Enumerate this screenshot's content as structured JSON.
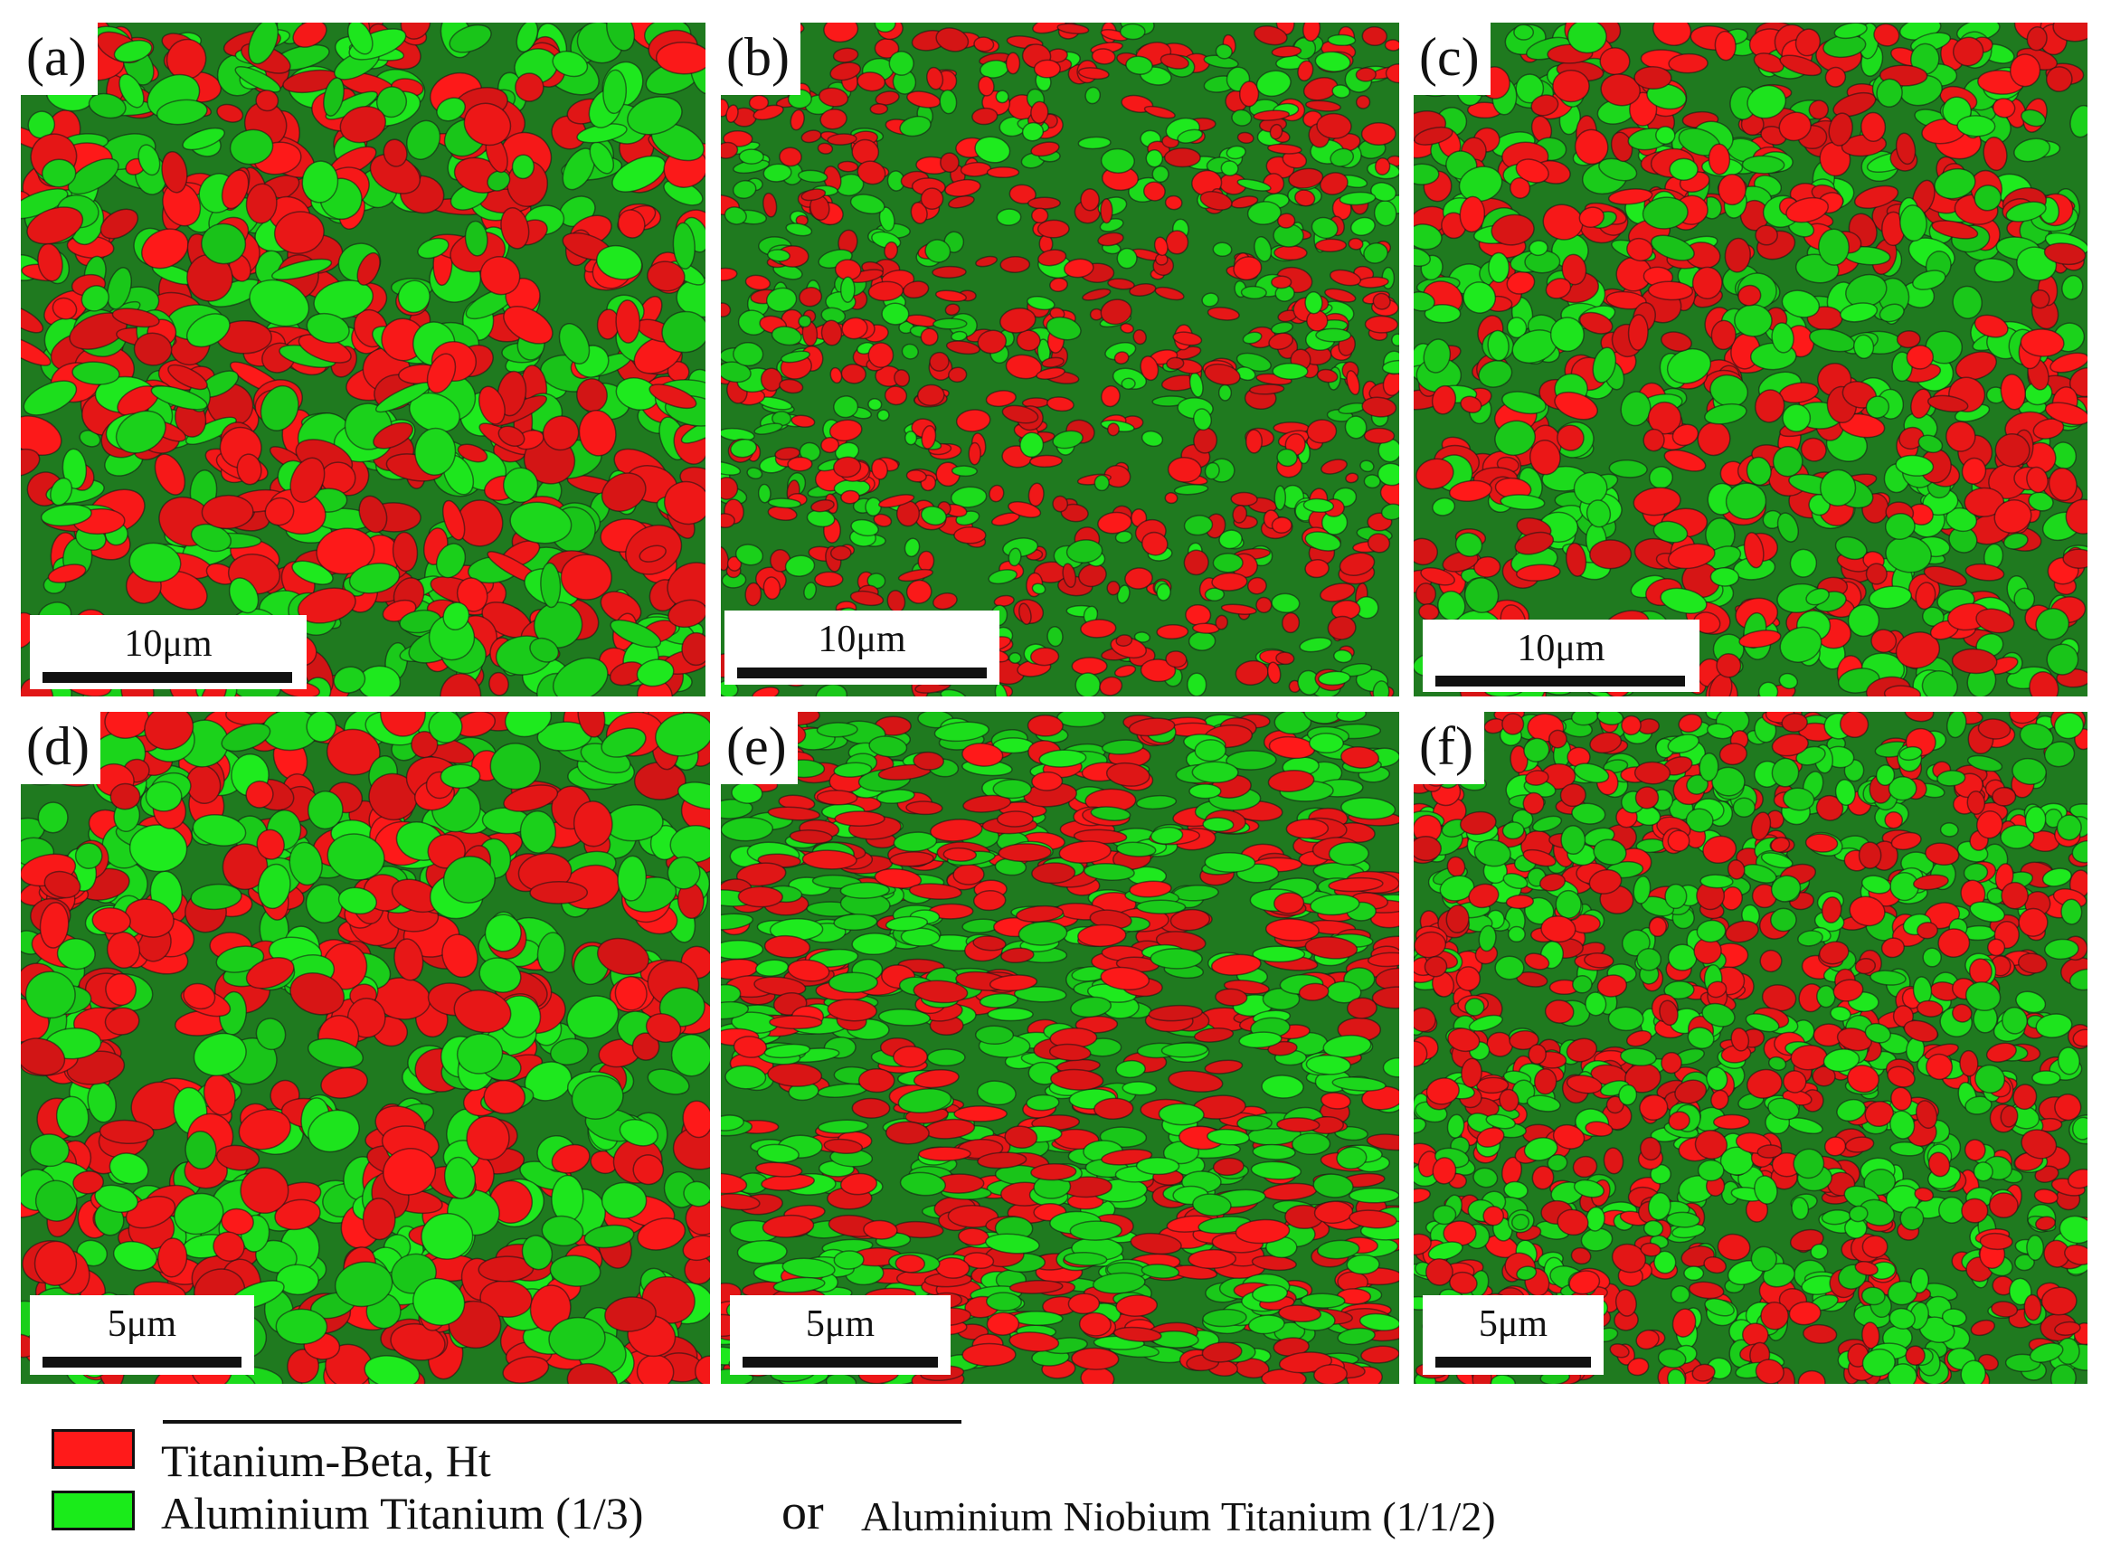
{
  "panels": [
    {
      "label": "(a)",
      "scale_label": "10μm"
    },
    {
      "label": "(b)",
      "scale_label": "10μm"
    },
    {
      "label": "(c)",
      "scale_label": "10μm"
    },
    {
      "label": "(d)",
      "scale_label": "5μm"
    },
    {
      "label": "(e)",
      "scale_label": "5μm"
    },
    {
      "label": "(f)",
      "scale_label": "5μm"
    }
  ],
  "legend": {
    "phase1": "Titanium-Beta, Ht",
    "phase2": "Aluminium Titanium (1/3)",
    "or_word": "or",
    "phase3": "Aluminium Niobium Titanium (1/1/2)",
    "phase1_color": "#ff1a1a",
    "phase2_color": "#1aeb1a"
  }
}
